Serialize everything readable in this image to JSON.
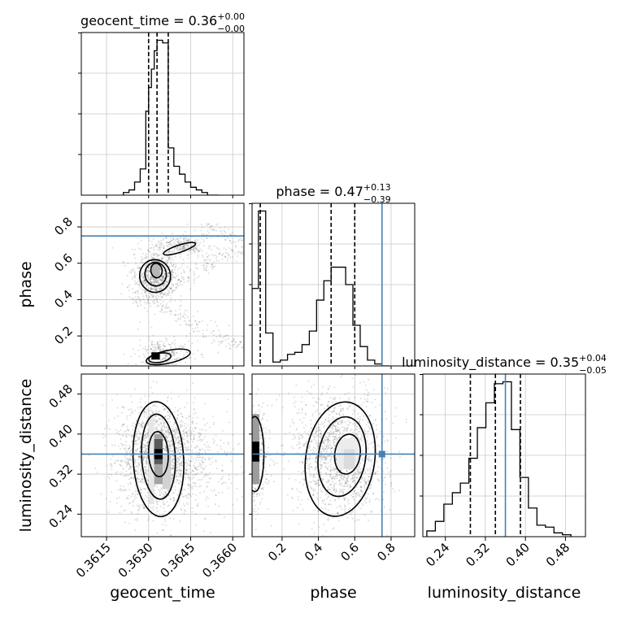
{
  "chart_data": {
    "type": "corner",
    "parameters": [
      "geocent_time",
      "phase",
      "luminosity_distance"
    ],
    "titles": [
      {
        "param": "geocent_time",
        "prefix": "geocent_time = ",
        "median": "0.36",
        "plus": "+0.00",
        "minus": "−0.00"
      },
      {
        "param": "phase",
        "prefix": "phase = ",
        "median": "0.47",
        "plus": "+0.13",
        "minus": "−0.39"
      },
      {
        "param": "luminosity_distance",
        "prefix": "luminosity_distance = ",
        "median": "0.35",
        "plus": "+0.04",
        "minus": "−0.05"
      }
    ],
    "axes": {
      "geocent_time": {
        "range": [
          0.3606,
          0.3664
        ],
        "ticks": [
          0.3615,
          0.363,
          0.3645,
          0.366
        ],
        "tick_labels": [
          "0.3615",
          "0.3630",
          "0.3645",
          "0.3660"
        ]
      },
      "phase": {
        "range": [
          0.035,
          0.93
        ],
        "ticks": [
          0.2,
          0.4,
          0.6,
          0.8
        ],
        "tick_labels": [
          "0.2",
          "0.4",
          "0.6",
          "0.8"
        ]
      },
      "luminosity_distance": {
        "range": [
          0.195,
          0.52
        ],
        "ticks": [
          0.24,
          0.32,
          0.4,
          0.48
        ],
        "tick_labels": [
          "0.24",
          "0.32",
          "0.40",
          "0.48"
        ]
      }
    },
    "truths": {
      "geocent_time": null,
      "phase": 0.75,
      "luminosity_distance": 0.36
    },
    "truth_color": "#4682b4",
    "quantiles": {
      "geocent_time": [
        0.363,
        0.3633,
        0.3637
      ],
      "phase": [
        0.08,
        0.47,
        0.6
      ],
      "luminosity_distance": [
        0.29,
        0.34,
        0.39
      ]
    },
    "histograms": {
      "geocent_time": {
        "edges": [
          0.3621,
          0.3623,
          0.3625,
          0.3627,
          0.3629,
          0.363,
          0.3631,
          0.3632,
          0.3633,
          0.3635,
          0.3637,
          0.3639,
          0.3641,
          0.3643,
          0.3645,
          0.3647,
          0.3649,
          0.3651,
          0.3653,
          0.3655
        ],
        "counts": [
          1,
          2,
          5,
          10,
          32,
          41,
          48,
          55,
          59,
          58,
          18,
          11,
          8,
          5,
          3,
          2,
          1,
          0,
          0
        ]
      },
      "phase": {
        "edges": [
          0.035,
          0.07,
          0.11,
          0.15,
          0.19,
          0.23,
          0.27,
          0.31,
          0.35,
          0.39,
          0.43,
          0.47,
          0.51,
          0.55,
          0.59,
          0.63,
          0.67,
          0.71,
          0.75,
          0.79
        ],
        "counts": [
          40,
          80,
          17,
          2,
          3,
          6,
          7,
          11,
          18,
          34,
          44,
          51,
          51,
          42,
          21,
          10,
          3,
          1,
          0
        ]
      },
      "luminosity_distance": {
        "edges": [
          0.203,
          0.22,
          0.237,
          0.254,
          0.27,
          0.287,
          0.304,
          0.321,
          0.338,
          0.355,
          0.372,
          0.389,
          0.406,
          0.423,
          0.44,
          0.457,
          0.474,
          0.491
        ],
        "counts": [
          3,
          8,
          17,
          23,
          28,
          41,
          57,
          70,
          80,
          81,
          56,
          31,
          15,
          6,
          5,
          2,
          1
        ]
      }
    },
    "grid": true
  }
}
